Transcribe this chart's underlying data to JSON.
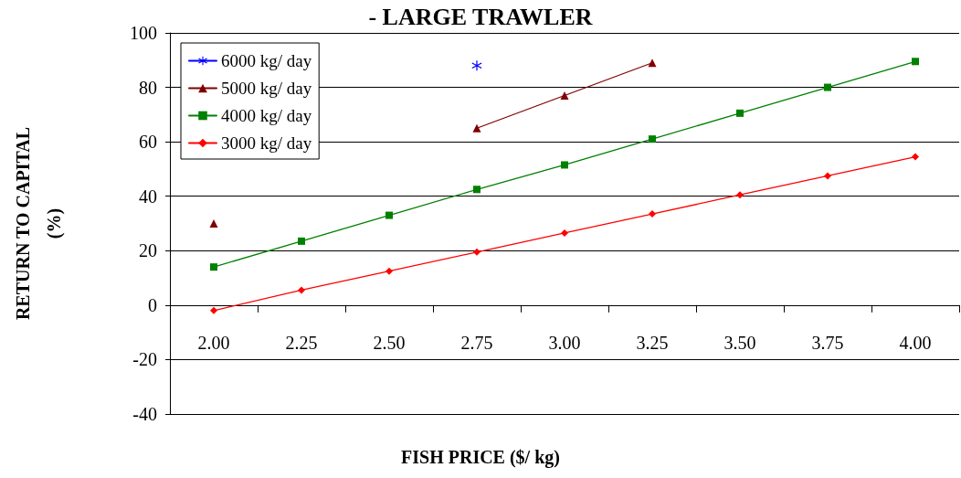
{
  "chart_data": {
    "type": "line",
    "title": "- LARGE TRAWLER",
    "xlabel": "FISH PRICE ($/ kg)",
    "ylabel": "RETURN TO CAPITAL\n(%)",
    "categories": [
      "2.00",
      "2.25",
      "2.50",
      "2.75",
      "3.00",
      "3.25",
      "3.50",
      "3.75",
      "4.00"
    ],
    "series": [
      {
        "name": "6000 kg/ day",
        "color": "#0000ff",
        "marker": "cross",
        "values": [
          null,
          null,
          null,
          88,
          null,
          null,
          null,
          null,
          null
        ]
      },
      {
        "name": "5000 kg/ day",
        "color": "#800000",
        "marker": "triangle",
        "values": [
          30,
          null,
          null,
          65,
          77,
          89,
          null,
          null,
          null
        ]
      },
      {
        "name": "4000 kg/ day",
        "color": "#008000",
        "marker": "square",
        "values": [
          14,
          23.5,
          33,
          42.5,
          51.5,
          61,
          70.5,
          80,
          89.5
        ]
      },
      {
        "name": "3000 kg/ day",
        "color": "#ff0000",
        "marker": "diamond",
        "values": [
          -2,
          5.5,
          12.5,
          19.5,
          26.5,
          33.5,
          40.5,
          47.5,
          54.5
        ]
      }
    ],
    "ylim": [
      -40,
      100
    ],
    "yticks": [
      -40,
      -20,
      0,
      20,
      40,
      60,
      80,
      100
    ],
    "grid": "y",
    "legend": "top left",
    "line_style": "solid"
  }
}
